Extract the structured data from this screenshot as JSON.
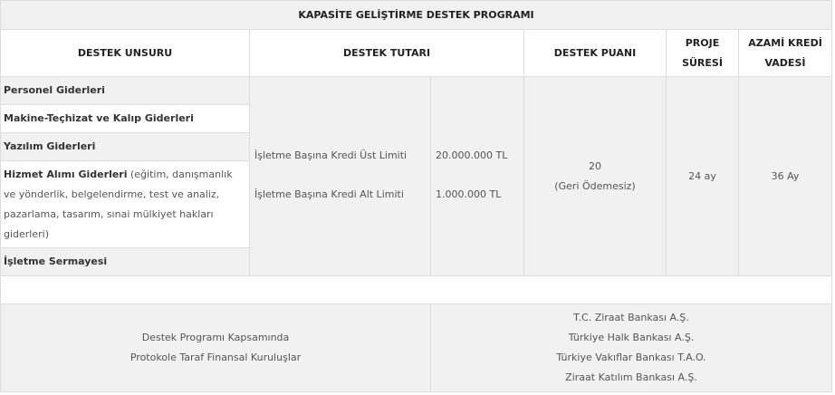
{
  "title": "KAPASİTE GELİŞTİRME DESTEK PROGRAMI",
  "headers": {
    "unsur": "DESTEK UNSURU",
    "tutar": "DESTEK TUTARI",
    "puan": "DESTEK PUANI",
    "sure": [
      "PROJE",
      "SÜRESİ"
    ],
    "vade": [
      "AZAMİ KREDİ",
      "VADESİ"
    ]
  },
  "unsurlar": [
    {
      "label": "Personel Giderleri",
      "detail": ""
    },
    {
      "label": "Makine-Teçhizat ve Kalıp Giderleri",
      "detail": ""
    },
    {
      "label": "Yazılım Giderleri",
      "detail": ""
    },
    {
      "label": "Hizmet Alımı Giderleri",
      "detail": " (eğitim, danışmanlık ve yönderlik, belgelendirme, test ve analiz, pazarlama, tasarım, sınai mülkiyet hakları giderleri)"
    },
    {
      "label": "İşletme Sermayesi",
      "detail": ""
    }
  ],
  "limits": [
    {
      "label": "İşletme Başına Kredi Üst Limiti",
      "value": "20.000.000 TL"
    },
    {
      "label": "İşletme Başına Kredi Alt Limiti",
      "value": "1.000.000 TL"
    }
  ],
  "puan": {
    "value": "20",
    "note": "(Geri Ödemesiz)"
  },
  "sure": "24 ay",
  "vade": "36 Ay",
  "kurulus": {
    "label": [
      "Destek Programı Kapsamında",
      "Protokole Taraf Finansal Kuruluşlar"
    ],
    "banks": [
      "T.C. Ziraat Bankası A.Ş.",
      "Türkiye Halk Bankası A.Ş.",
      "Türkiye Vakıflar Bankası T.A.O.",
      "Ziraat Katılım Bankası A.Ş."
    ]
  }
}
